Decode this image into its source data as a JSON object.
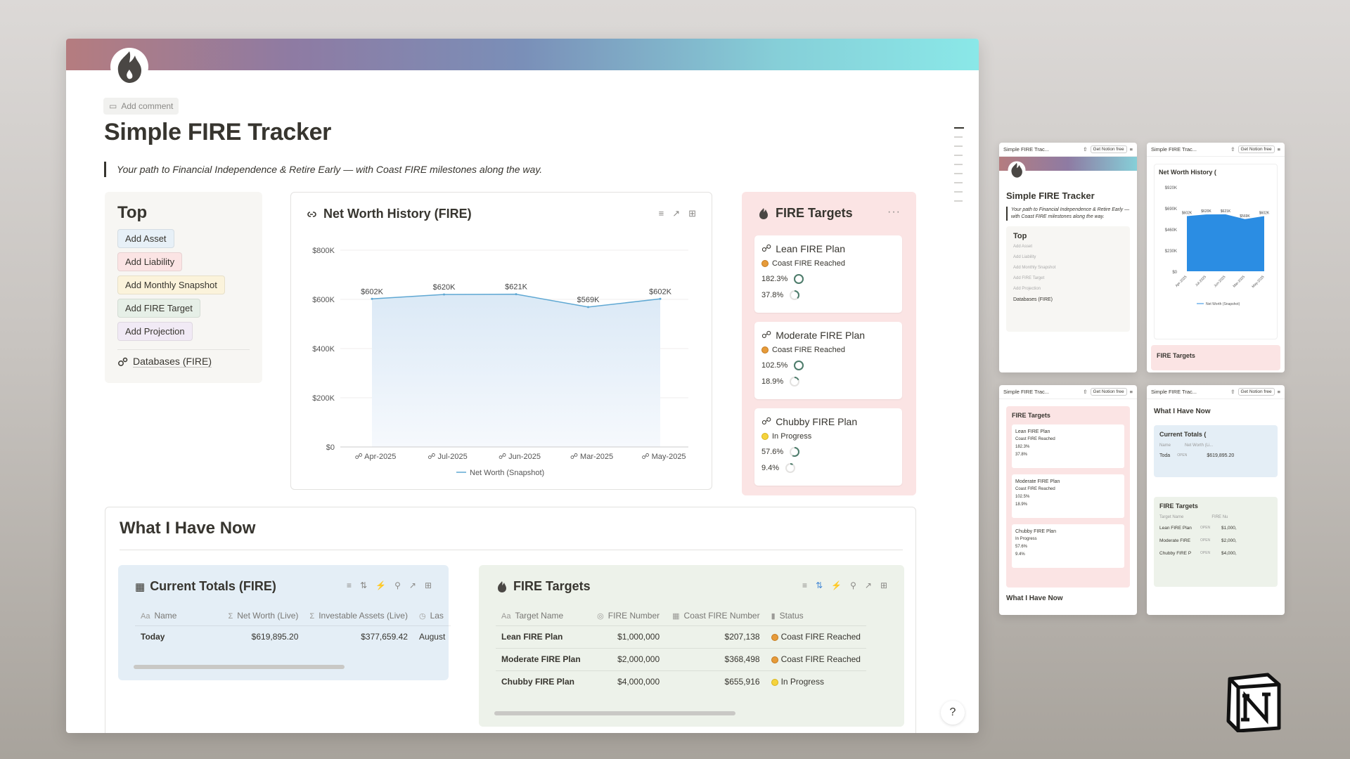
{
  "page": {
    "add_comment": "Add comment",
    "title": "Simple FIRE Tracker",
    "quote": "Your path to Financial Independence & Retire Early — with Coast FIRE milestones along the way."
  },
  "top": {
    "heading": "Top",
    "buttons": [
      {
        "label": "Add Asset",
        "color": "#e7f0f7"
      },
      {
        "label": "Add Liability",
        "color": "#fbe4e4"
      },
      {
        "label": "Add Monthly Snapshot",
        "color": "#fbf3db"
      },
      {
        "label": "Add FIRE Target",
        "color": "#e6efe7"
      },
      {
        "label": "Add Projection",
        "color": "#f1eaf5"
      }
    ],
    "databases_link": "Databases (FIRE)"
  },
  "chart_card": {
    "title": "Net Worth History (FIRE)"
  },
  "chart_data": {
    "type": "area",
    "categories": [
      "Apr-2025",
      "Jul-2025",
      "Jun-2025",
      "Mar-2025",
      "May-2025"
    ],
    "series": [
      {
        "name": "Net Worth (Snapshot)",
        "values": [
          602000,
          620000,
          621000,
          569000,
          602000
        ]
      }
    ],
    "data_labels": [
      "$602K",
      "$620K",
      "$621K",
      "$569K",
      "$602K"
    ],
    "yticks": [
      "$0",
      "$200K",
      "$400K",
      "$600K",
      "$800K"
    ],
    "ylim": [
      0,
      800000
    ],
    "legend": "bottom",
    "color": "#5fa8d3"
  },
  "fire_targets_col": {
    "title": "FIRE Targets",
    "more": "···",
    "cards": [
      {
        "name": "Lean FIRE Plan",
        "status": "Coast FIRE Reached",
        "status_color": "orange",
        "pct1": "182.3%",
        "pct1_value": 1.0,
        "pct2": "37.8%",
        "pct2_value": 0.378
      },
      {
        "name": "Moderate FIRE Plan",
        "status": "Coast FIRE Reached",
        "status_color": "orange",
        "pct1": "102.5%",
        "pct1_value": 1.0,
        "pct2": "18.9%",
        "pct2_value": 0.189
      },
      {
        "name": "Chubby FIRE Plan",
        "status": "In Progress",
        "status_color": "yellow",
        "pct1": "57.6%",
        "pct1_value": 0.576,
        "pct2": "9.4%",
        "pct2_value": 0.094
      }
    ]
  },
  "have_now": {
    "title": "What I Have Now",
    "current_totals": {
      "title": "Current Totals (FIRE)",
      "columns": [
        "Name",
        "Net Worth (Live)",
        "Investable Assets (Live)",
        "Las"
      ],
      "rows": [
        [
          "Today",
          "$619,895.20",
          "$377,659.42",
          "August"
        ]
      ],
      "color": "#e4eef6"
    },
    "fire_targets": {
      "title": "FIRE Targets",
      "columns": [
        "Target Name",
        "FIRE Number",
        "Coast FIRE Number",
        "Status"
      ],
      "rows": [
        [
          "Lean FIRE Plan",
          "$1,000,000",
          "$207,138",
          "Coast FIRE Reached"
        ],
        [
          "Moderate FIRE Plan",
          "$2,000,000",
          "$368,498",
          "Coast FIRE Reached"
        ],
        [
          "Chubby FIRE Plan",
          "$4,000,000",
          "$655,916",
          "In Progress"
        ]
      ],
      "color": "#edf2ea"
    }
  },
  "thumbs": {
    "tab_title": "Simple FIRE Trac...",
    "get_notion": "Get Notion free",
    "t1": {
      "title": "Simple FIRE Tracker",
      "quote": "Your path to Financial Independence & Retire Early — with Coast FIRE milestones along the way.",
      "top": "Top",
      "buttons": [
        "Add Asset",
        "Add Liability",
        "Add Monthly Snapshot",
        "Add FIRE Target",
        "Add Projection"
      ],
      "db": "Databases (FIRE)"
    },
    "t2": {
      "chart_title": "Net Worth History (",
      "yticks": [
        "$0",
        "$230K",
        "$460K",
        "$690K",
        "$920K"
      ],
      "labels": [
        "$602K",
        "$620K",
        "$621K",
        "$569K",
        "$602K"
      ],
      "xticks": [
        "Apr-2025",
        "Jul-2025",
        "Jun-2025",
        "Mar-2025",
        "May-2025"
      ],
      "legend": "Net Worth (Snapshot)",
      "footer": "FIRE Targets"
    },
    "t3": {
      "title": "FIRE Targets",
      "cards": [
        {
          "name": "Lean FIRE Plan",
          "status": "Coast FIRE Reached",
          "p1": "182.3%",
          "p2": "37.8%"
        },
        {
          "name": "Moderate FIRE Plan",
          "status": "Coast FIRE Reached",
          "p1": "102.5%",
          "p2": "18.9%"
        },
        {
          "name": "Chubby FIRE Plan",
          "status": "In Progress",
          "p1": "57.6%",
          "p2": "9.4%"
        }
      ],
      "footer": "What I Have Now"
    },
    "t4": {
      "title": "What I Have Now",
      "ct_title": "Current Totals (",
      "ct_cols": [
        "Name",
        "Net Worth (Li..."
      ],
      "ct_row": [
        "Toda",
        "OPEN",
        "$619,895.20"
      ],
      "ft_title": "FIRE Targets",
      "ft_cols": [
        "Target Name",
        "FIRE Nu"
      ],
      "ft_rows": [
        [
          "Lean FIRE Plan",
          "OPEN",
          "$1,000,"
        ],
        [
          "Moderate FIRE",
          "OPEN",
          "$2,000,"
        ],
        [
          "Chubby FIRE P",
          "OPEN",
          "$4,000,"
        ]
      ]
    }
  }
}
